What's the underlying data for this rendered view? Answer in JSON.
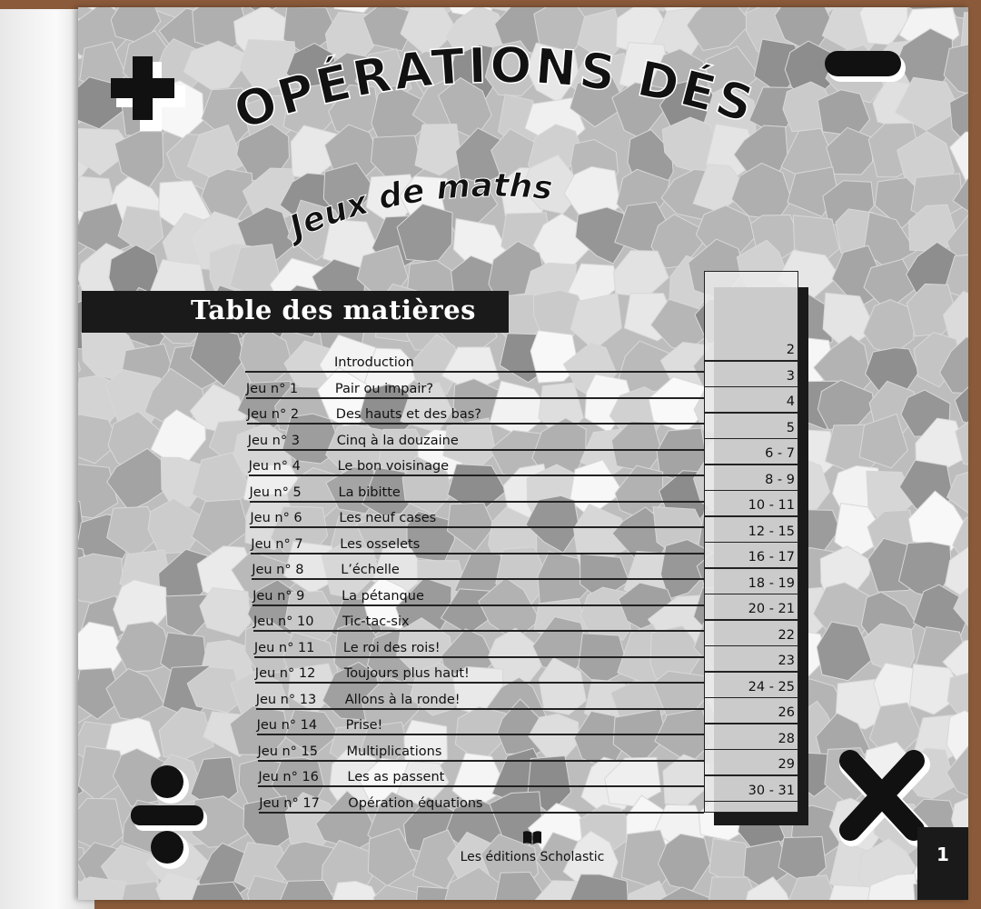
{
  "book": {
    "title": "OPÉRATIONS DÉS",
    "subtitle": "Jeux de maths",
    "publisher": "Les éditions Scholastic",
    "page_number": "1"
  },
  "toc": {
    "heading": "Table des matières",
    "entries": [
      {
        "game": "",
        "name": "Introduction",
        "pages": "2"
      },
      {
        "game": "Jeu n° 1",
        "name": "Pair ou impair?",
        "pages": "3"
      },
      {
        "game": "Jeu n° 2",
        "name": "Des hauts et des bas?",
        "pages": "4"
      },
      {
        "game": "Jeu n° 3",
        "name": "Cinq à la douzaine",
        "pages": "5"
      },
      {
        "game": "Jeu n° 4",
        "name": "Le bon voisinage",
        "pages": "6 - 7"
      },
      {
        "game": "Jeu n° 5",
        "name": "La bibitte",
        "pages": "8 - 9"
      },
      {
        "game": "Jeu n° 6",
        "name": "Les neuf cases",
        "pages": "10 - 11"
      },
      {
        "game": "Jeu n° 7",
        "name": "Les osselets",
        "pages": "12 - 15"
      },
      {
        "game": "Jeu n° 8",
        "name": "L’échelle",
        "pages": "16 - 17"
      },
      {
        "game": "Jeu n° 9",
        "name": "La pétanque",
        "pages": "18 - 19"
      },
      {
        "game": "Jeu n° 10",
        "name": "Tic-tac-six",
        "pages": "20 - 21"
      },
      {
        "game": "Jeu n° 11",
        "name": "Le roi des rois!",
        "pages": "22"
      },
      {
        "game": "Jeu n° 12",
        "name": "Toujours plus haut!",
        "pages": "23"
      },
      {
        "game": "Jeu n° 13",
        "name": "Allons à la ronde!",
        "pages": "24 - 25"
      },
      {
        "game": "Jeu n° 14",
        "name": "Prise!",
        "pages": "26"
      },
      {
        "game": "Jeu n° 15",
        "name": "Multiplications",
        "pages": "28"
      },
      {
        "game": "Jeu n° 16",
        "name": "Les as passent",
        "pages": "29"
      },
      {
        "game": "Jeu n° 17",
        "name": "Opération équations",
        "pages": "30 - 31"
      }
    ]
  },
  "icons": [
    "plus-icon",
    "minus-icon",
    "divide-icon",
    "multiply-icon",
    "book-icon"
  ],
  "colors": {
    "ink": "#1a1a1a",
    "page": "#bdbdbd",
    "wood": "#8a5a3a"
  }
}
